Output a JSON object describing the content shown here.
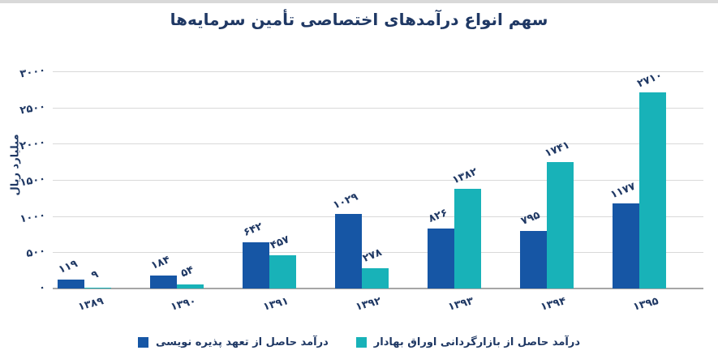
{
  "page": {
    "background": "#FFFFFF",
    "top_strip_color": "#D9D9D9"
  },
  "chart_data": {
    "type": "bar",
    "title": "سهم انواع درآمدهای اختصاصی تأمین سرمایه‌ها",
    "xlabel": "",
    "ylabel": "میلیارد ریال",
    "ylim": [
      0,
      3000
    ],
    "grid": true,
    "rtl": true,
    "legend_position": "bottom",
    "categories": [
      "۱۳۸۹",
      "۱۳۹۰",
      "۱۳۹۱",
      "۱۳۹۲",
      "۱۳۹۳",
      "۱۳۹۴",
      "۱۳۹۵"
    ],
    "y_ticks": [
      {
        "value": 0,
        "label": "۰"
      },
      {
        "value": 500,
        "label": "۵۰۰"
      },
      {
        "value": 1000,
        "label": "۱۰۰۰"
      },
      {
        "value": 1500,
        "label": "۱۵۰۰"
      },
      {
        "value": 2000,
        "label": "۲۰۰۰"
      },
      {
        "value": 2500,
        "label": "۲۵۰۰"
      },
      {
        "value": 3000,
        "label": "۳۰۰۰"
      }
    ],
    "series": [
      {
        "name": "درآمد حاصل از تعهد پذیره نویسی",
        "color": "#1656A5",
        "values": [
          119,
          184,
          642,
          1029,
          826,
          795,
          1177
        ],
        "value_labels": [
          "۱۱۹",
          "۱۸۴",
          "۶۴۲",
          "۱۰۲۹",
          "۸۲۶",
          "۷۹۵",
          "۱۱۷۷"
        ]
      },
      {
        "name": "درآمد حاصل از بازارگردانی اوراق بهادار",
        "color": "#18B2B8",
        "values": [
          9,
          54,
          457,
          278,
          1382,
          1741,
          2710
        ],
        "value_labels": [
          "۹",
          "۵۴",
          "۴۵۷",
          "۲۷۸",
          "۱۳۸۲",
          "۱۷۴۱",
          "۲۷۱۰"
        ]
      }
    ],
    "colors": {
      "text": "#1F3864",
      "gridline": "#D9D9D9",
      "axis_line": "#A6A6A6"
    }
  }
}
